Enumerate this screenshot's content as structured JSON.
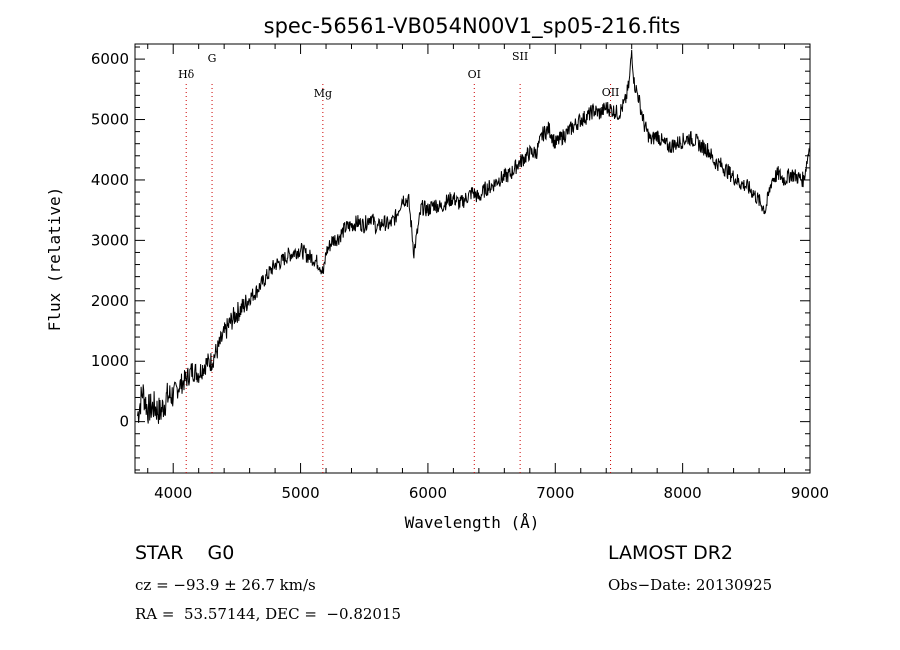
{
  "chart_data": {
    "type": "line",
    "title": "spec-56561-VB054N00V1_sp05-216.fits",
    "xlabel": "Wavelength (Å)",
    "ylabel": "Flux (relative)",
    "xlim": [
      3700,
      9000
    ],
    "ylim": [
      -850,
      6250
    ],
    "x_ticks": [
      4000,
      5000,
      6000,
      7000,
      8000,
      9000
    ],
    "y_ticks": [
      0,
      1000,
      2000,
      3000,
      4000,
      5000,
      6000
    ],
    "grid": false,
    "series": [
      {
        "color": "#000000",
        "x": [
          3720,
          3760,
          3800,
          3850,
          3900,
          3950,
          4000,
          4050,
          4100,
          4150,
          4200,
          4250,
          4300,
          4350,
          4400,
          4450,
          4500,
          4550,
          4600,
          4650,
          4700,
          4750,
          4800,
          4850,
          4900,
          4950,
          5000,
          5050,
          5100,
          5150,
          5180,
          5200,
          5250,
          5300,
          5350,
          5400,
          5450,
          5500,
          5550,
          5600,
          5650,
          5700,
          5750,
          5800,
          5850,
          5890,
          5950,
          6000,
          6050,
          6100,
          6150,
          6200,
          6250,
          6300,
          6350,
          6400,
          6450,
          6500,
          6550,
          6600,
          6650,
          6700,
          6750,
          6800,
          6850,
          6900,
          6950,
          7000,
          7050,
          7100,
          7150,
          7200,
          7250,
          7300,
          7350,
          7400,
          7450,
          7500,
          7550,
          7580,
          7600,
          7620,
          7650,
          7700,
          7750,
          7800,
          7850,
          7900,
          7950,
          8000,
          8050,
          8100,
          8150,
          8200,
          8250,
          8300,
          8350,
          8400,
          8450,
          8500,
          8550,
          8600,
          8650,
          8700,
          8750,
          8800,
          8850,
          8900,
          8950,
          9000
        ],
        "values": [
          100,
          500,
          200,
          250,
          150,
          400,
          450,
          600,
          700,
          850,
          800,
          950,
          1000,
          1200,
          1450,
          1650,
          1800,
          1900,
          2050,
          2150,
          2300,
          2450,
          2600,
          2650,
          2750,
          2800,
          2850,
          2750,
          2700,
          2600,
          2450,
          2800,
          3000,
          3050,
          3200,
          3250,
          3300,
          3250,
          3400,
          3200,
          3300,
          3250,
          3400,
          3700,
          3650,
          2800,
          3550,
          3500,
          3600,
          3550,
          3650,
          3700,
          3600,
          3700,
          3800,
          3700,
          3850,
          3900,
          4000,
          4050,
          4100,
          4250,
          4350,
          4450,
          4450,
          4750,
          4850,
          4600,
          4700,
          4800,
          4900,
          5000,
          5050,
          5150,
          5100,
          5200,
          5150,
          5100,
          5300,
          5600,
          6150,
          5600,
          5400,
          4900,
          4650,
          4750,
          4600,
          4550,
          4600,
          4650,
          4700,
          4650,
          4550,
          4500,
          4300,
          4250,
          4150,
          4050,
          3950,
          3900,
          3800,
          3650,
          3500,
          4000,
          4100,
          4000,
          4100,
          4050,
          4000,
          4600
        ]
      }
    ],
    "lines": [
      {
        "label": "Hδ",
        "x": 4102
      },
      {
        "label": "G",
        "x": 4305
      },
      {
        "label": "Mg",
        "x": 5175
      },
      {
        "label": "OI",
        "x": 6364
      },
      {
        "label": "SII",
        "x": 6724
      },
      {
        "label": "OII",
        "x": 7434
      }
    ]
  },
  "info": {
    "class": "STAR    G0",
    "survey": "LAMOST DR2",
    "cz": "cz = −93.9 ± 26.7 km/s",
    "obs_date": "Obs−Date: 20130925",
    "radec": "RA =  53.57144, DEC =  −0.82015"
  },
  "colors": {
    "spectrum": "#000000",
    "line_marker": "#cc0000",
    "axes": "#000000"
  }
}
